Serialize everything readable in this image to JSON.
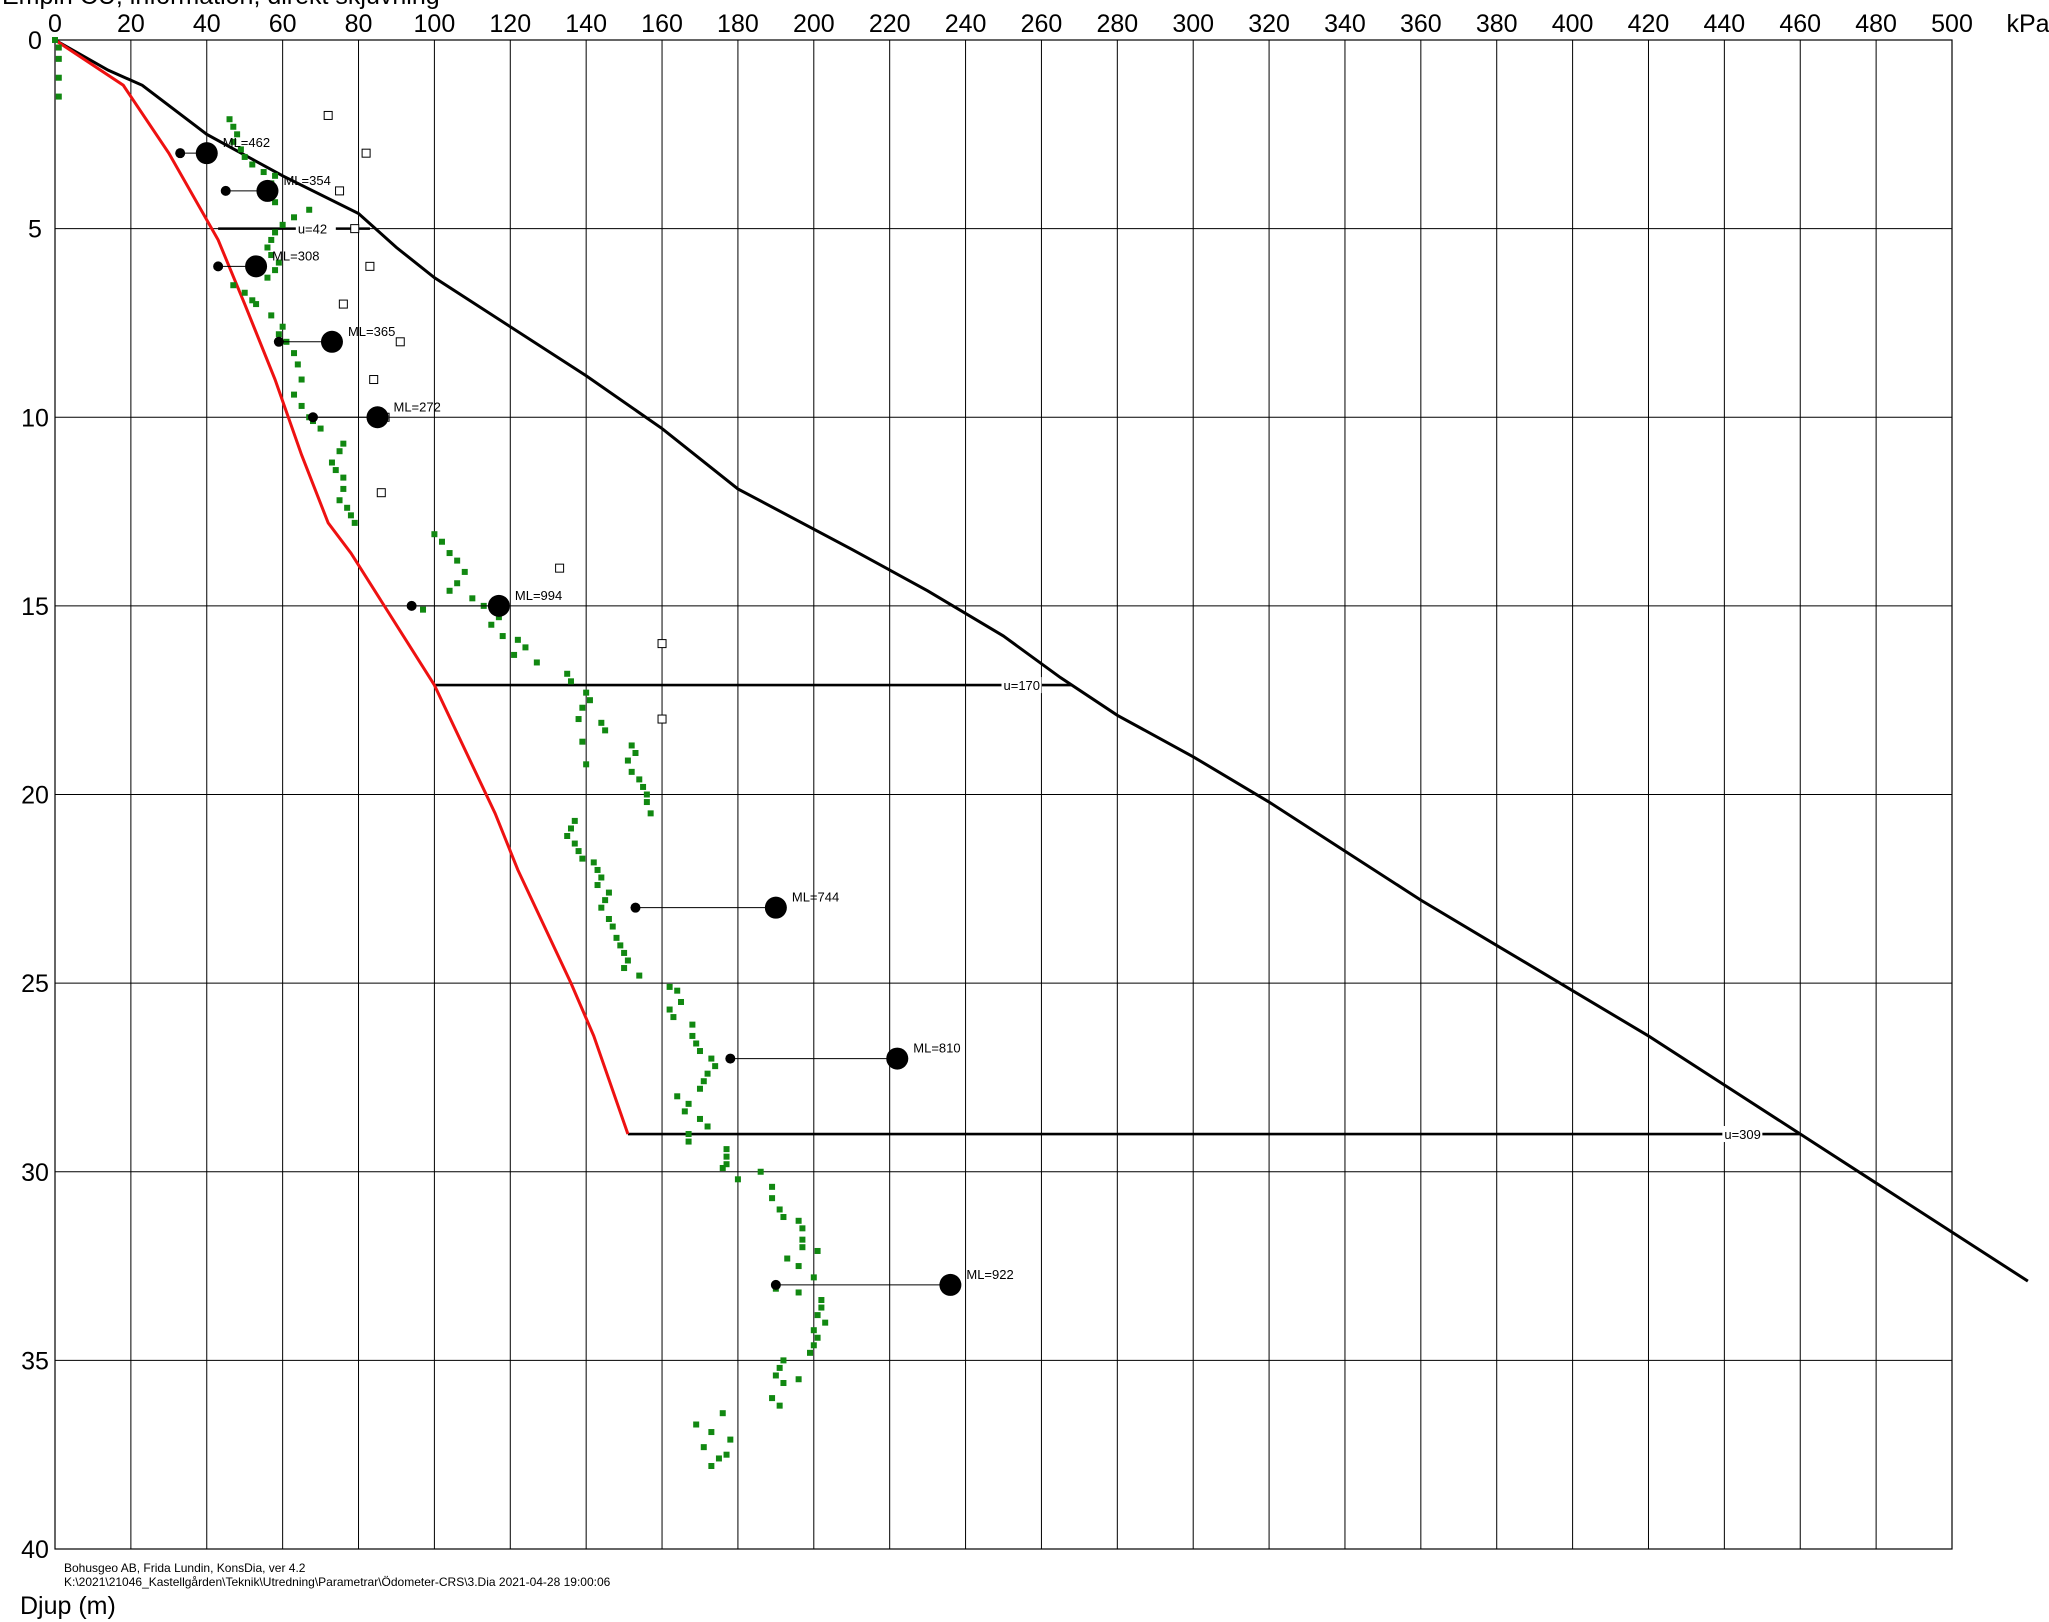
{
  "chart_data": {
    "type": "line",
    "header_text": "Empiri CU, information, direkt skjuvning",
    "x_unit": "kPa",
    "ylabel": "Djup (m)",
    "xlim": [
      0,
      500
    ],
    "ylim": [
      0,
      40
    ],
    "x_ticks": [
      0,
      20,
      40,
      60,
      80,
      100,
      120,
      140,
      160,
      180,
      200,
      220,
      240,
      260,
      280,
      300,
      320,
      340,
      360,
      380,
      400,
      420,
      440,
      460,
      480,
      500
    ],
    "y_ticks": [
      0,
      5,
      10,
      15,
      20,
      25,
      30,
      35,
      40
    ],
    "grid": true,
    "footer": {
      "line1": "Bohusgeo AB, Frida Lundin, KonsDia, ver 4.2",
      "line2": "K:\\2021\\21046_Kastellgården\\Teknik\\Utredning\\Parametrar\\Ödometer-CRS\\3.Dia   2021-04-28 19:00:06"
    },
    "colors": {
      "red_line": "#ee1111",
      "black_line": "#000000",
      "green_points": "#118811",
      "grid": "#000000"
    },
    "black_line": [
      [
        0,
        0
      ],
      [
        14,
        0.8
      ],
      [
        23,
        1.2
      ],
      [
        40,
        2.5
      ],
      [
        60,
        3.6
      ],
      [
        80,
        4.6
      ],
      [
        90,
        5.5
      ],
      [
        100,
        6.3
      ],
      [
        140,
        8.9
      ],
      [
        160,
        10.3
      ],
      [
        180,
        11.9
      ],
      [
        210,
        13.5
      ],
      [
        230,
        14.6
      ],
      [
        250,
        15.8
      ],
      [
        265,
        16.9
      ],
      [
        280,
        17.9
      ],
      [
        300,
        19
      ],
      [
        320,
        20.2
      ],
      [
        340,
        21.5
      ],
      [
        360,
        22.8
      ],
      [
        380,
        24
      ],
      [
        400,
        25.2
      ],
      [
        420,
        26.4
      ],
      [
        440,
        27.7
      ],
      [
        460,
        29
      ],
      [
        480,
        30.3
      ],
      [
        500,
        31.6
      ],
      [
        520,
        32.9
      ]
    ],
    "red_line": [
      [
        0,
        0
      ],
      [
        18,
        1.2
      ],
      [
        30,
        3
      ],
      [
        43,
        5.3
      ],
      [
        50,
        7
      ],
      [
        58,
        9
      ],
      [
        65,
        11
      ],
      [
        72,
        12.8
      ],
      [
        78,
        13.6
      ],
      [
        100,
        17.1
      ],
      [
        116,
        20.5
      ],
      [
        122,
        22
      ],
      [
        136,
        25
      ],
      [
        142,
        26.4
      ],
      [
        151,
        29
      ]
    ],
    "u_lines": [
      {
        "depth": 5,
        "x0": 43,
        "x1": 83,
        "label": "u=42",
        "label_x": 64
      },
      {
        "depth": 17.1,
        "x0": 100,
        "x1": 268,
        "label": "u=170",
        "label_x": 250
      },
      {
        "depth": 29,
        "x0": 151,
        "x1": 460,
        "label": "u=309",
        "label_x": 440
      }
    ],
    "ml_points": [
      {
        "depth": 3,
        "small_x": 33,
        "big_x": 40,
        "label": "ML=462"
      },
      {
        "depth": 4,
        "small_x": 45,
        "big_x": 56,
        "label": "ML=354"
      },
      {
        "depth": 6,
        "small_x": 43,
        "big_x": 53,
        "label": "ML=308"
      },
      {
        "depth": 8,
        "small_x": 59,
        "big_x": 73,
        "label": "ML=365"
      },
      {
        "depth": 10,
        "small_x": 68,
        "big_x": 85,
        "label": "ML=272"
      },
      {
        "depth": 15,
        "small_x": 94,
        "big_x": 117,
        "label": "ML=994"
      },
      {
        "depth": 23,
        "small_x": 153,
        "big_x": 190,
        "label": "ML=744"
      },
      {
        "depth": 27,
        "small_x": 178,
        "big_x": 222,
        "label": "ML=810"
      },
      {
        "depth": 33,
        "small_x": 190,
        "big_x": 236,
        "label": "ML=922"
      }
    ],
    "open_squares": [
      [
        72,
        2
      ],
      [
        82,
        3
      ],
      [
        75,
        4
      ],
      [
        79,
        5
      ],
      [
        83,
        6
      ],
      [
        76,
        7
      ],
      [
        91,
        8
      ],
      [
        84,
        9
      ],
      [
        87,
        10
      ],
      [
        86,
        12
      ],
      [
        133,
        14
      ],
      [
        160,
        16
      ],
      [
        160,
        18
      ]
    ],
    "green_points": [
      [
        0,
        0
      ],
      [
        1,
        0.2
      ],
      [
        1,
        0.5
      ],
      [
        1,
        1
      ],
      [
        1,
        1.5
      ],
      [
        46,
        2.1
      ],
      [
        47,
        2.3
      ],
      [
        48,
        2.5
      ],
      [
        47,
        2.7
      ],
      [
        49,
        2.9
      ],
      [
        50,
        3.1
      ],
      [
        52,
        3.3
      ],
      [
        55,
        3.5
      ],
      [
        58,
        3.6
      ],
      [
        57,
        3.8
      ],
      [
        54,
        4
      ],
      [
        56,
        4.2
      ],
      [
        58,
        4.3
      ],
      [
        67,
        4.5
      ],
      [
        63,
        4.7
      ],
      [
        60,
        4.9
      ],
      [
        58,
        5.1
      ],
      [
        57,
        5.3
      ],
      [
        56,
        5.5
      ],
      [
        57,
        5.7
      ],
      [
        59,
        5.9
      ],
      [
        58,
        6.1
      ],
      [
        56,
        6.3
      ],
      [
        47,
        6.5
      ],
      [
        50,
        6.7
      ],
      [
        52,
        6.9
      ],
      [
        53,
        7
      ],
      [
        57,
        7.3
      ],
      [
        60,
        7.6
      ],
      [
        59,
        7.8
      ],
      [
        61,
        8
      ],
      [
        63,
        8.3
      ],
      [
        64,
        8.6
      ],
      [
        65,
        9
      ],
      [
        63,
        9.4
      ],
      [
        65,
        9.7
      ],
      [
        67,
        10
      ],
      [
        68,
        10.1
      ],
      [
        70,
        10.3
      ],
      [
        76,
        10.7
      ],
      [
        75,
        10.9
      ],
      [
        73,
        11.2
      ],
      [
        74,
        11.4
      ],
      [
        76,
        11.6
      ],
      [
        76,
        11.9
      ],
      [
        75,
        12.2
      ],
      [
        77,
        12.4
      ],
      [
        78,
        12.6
      ],
      [
        79,
        12.8
      ],
      [
        100,
        13.1
      ],
      [
        102,
        13.3
      ],
      [
        104,
        13.6
      ],
      [
        106,
        13.8
      ],
      [
        108,
        14.1
      ],
      [
        106,
        14.4
      ],
      [
        104,
        14.6
      ],
      [
        110,
        14.8
      ],
      [
        113,
        15
      ],
      [
        97,
        15.1
      ],
      [
        117,
        15.3
      ],
      [
        115,
        15.5
      ],
      [
        118,
        15.8
      ],
      [
        122,
        15.9
      ],
      [
        124,
        16.1
      ],
      [
        121,
        16.3
      ],
      [
        127,
        16.5
      ],
      [
        135,
        16.8
      ],
      [
        136,
        17
      ],
      [
        140,
        17.3
      ],
      [
        141,
        17.5
      ],
      [
        139,
        17.7
      ],
      [
        138,
        18
      ],
      [
        144,
        18.1
      ],
      [
        145,
        18.3
      ],
      [
        139,
        18.6
      ],
      [
        152,
        18.7
      ],
      [
        153,
        18.9
      ],
      [
        151,
        19.1
      ],
      [
        140,
        19.2
      ],
      [
        152,
        19.4
      ],
      [
        154,
        19.6
      ],
      [
        155,
        19.8
      ],
      [
        156,
        20
      ],
      [
        156,
        20.2
      ],
      [
        157,
        20.5
      ],
      [
        137,
        20.7
      ],
      [
        136,
        20.9
      ],
      [
        135,
        21.1
      ],
      [
        137,
        21.3
      ],
      [
        138,
        21.5
      ],
      [
        139,
        21.7
      ],
      [
        142,
        21.8
      ],
      [
        143,
        22
      ],
      [
        144,
        22.2
      ],
      [
        143,
        22.4
      ],
      [
        146,
        22.6
      ],
      [
        145,
        22.8
      ],
      [
        144,
        23
      ],
      [
        146,
        23.3
      ],
      [
        147,
        23.5
      ],
      [
        148,
        23.8
      ],
      [
        149,
        24
      ],
      [
        150,
        24.2
      ],
      [
        151,
        24.4
      ],
      [
        150,
        24.6
      ],
      [
        154,
        24.8
      ],
      [
        162,
        25.1
      ],
      [
        164,
        25.2
      ],
      [
        165,
        25.5
      ],
      [
        162,
        25.7
      ],
      [
        163,
        25.9
      ],
      [
        168,
        26.1
      ],
      [
        168,
        26.4
      ],
      [
        169,
        26.6
      ],
      [
        170,
        26.8
      ],
      [
        173,
        27
      ],
      [
        174,
        27.2
      ],
      [
        172,
        27.4
      ],
      [
        171,
        27.6
      ],
      [
        170,
        27.8
      ],
      [
        164,
        28
      ],
      [
        167,
        28.2
      ],
      [
        166,
        28.4
      ],
      [
        170,
        28.6
      ],
      [
        172,
        28.8
      ],
      [
        167,
        29
      ],
      [
        167,
        29.2
      ],
      [
        177,
        29.4
      ],
      [
        177,
        29.6
      ],
      [
        177,
        29.8
      ],
      [
        176,
        29.9
      ],
      [
        186,
        30
      ],
      [
        180,
        30.2
      ],
      [
        189,
        30.4
      ],
      [
        189,
        30.7
      ],
      [
        191,
        31
      ],
      [
        192,
        31.2
      ],
      [
        196,
        31.3
      ],
      [
        197,
        31.5
      ],
      [
        197,
        31.8
      ],
      [
        197,
        32
      ],
      [
        201,
        32.1
      ],
      [
        193,
        32.3
      ],
      [
        196,
        32.5
      ],
      [
        200,
        32.8
      ],
      [
        190,
        33.1
      ],
      [
        196,
        33.2
      ],
      [
        202,
        33.4
      ],
      [
        202,
        33.6
      ],
      [
        201,
        33.8
      ],
      [
        203,
        34
      ],
      [
        200,
        34.2
      ],
      [
        201,
        34.4
      ],
      [
        200,
        34.6
      ],
      [
        199,
        34.8
      ],
      [
        192,
        35
      ],
      [
        191,
        35.2
      ],
      [
        190,
        35.4
      ],
      [
        196,
        35.5
      ],
      [
        192,
        35.6
      ],
      [
        189,
        36
      ],
      [
        191,
        36.2
      ],
      [
        169,
        36.7
      ],
      [
        176,
        36.4
      ],
      [
        173,
        36.9
      ],
      [
        178,
        37.1
      ],
      [
        171,
        37.3
      ],
      [
        177,
        37.5
      ],
      [
        175,
        37.6
      ],
      [
        173,
        37.8
      ]
    ]
  }
}
